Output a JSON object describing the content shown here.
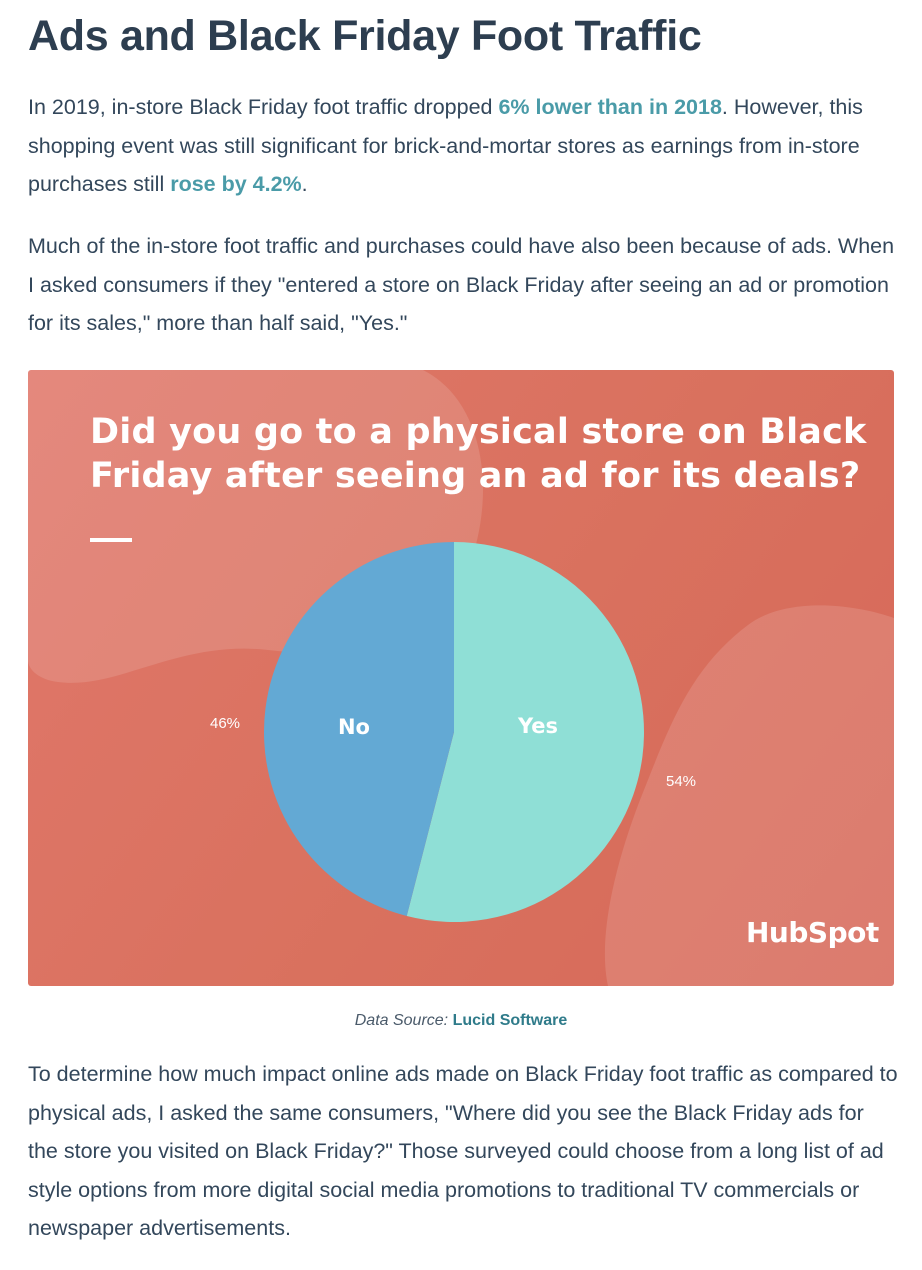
{
  "article": {
    "heading": "Ads and Black Friday Foot Traffic",
    "p1": {
      "t1": "In 2019, in-store Black Friday foot traffic dropped ",
      "link1": "6% lower than in 2018",
      "t2": ". However, this shopping event was still significant for brick-and-mortar stores as earnings from in-store purchases still ",
      "link2": "rose by 4.2%",
      "t3": "."
    },
    "p2": "Much of the in-store foot traffic and purchases could have also been because of ads. When I asked consumers if they \"entered a store on Black Friday after seeing an ad or promotion for its sales,\" more than half said, \"Yes.\"",
    "p3": "To determine how much impact online ads made on Black Friday foot traffic as compared to physical ads, I asked the same consumers, \"Where did you see the Black Friday ads for the store you visited on Black Friday?\" Those surveyed could choose from a long list of ad style options from more digital social media promotions to traditional TV commercials or newspaper advertisements."
  },
  "figure": {
    "brand": "HubSpot",
    "caption": {
      "label": "Data Source:",
      "link": "Lucid Software"
    },
    "colors": {
      "background": "#dc725f",
      "no": "#63a9d4",
      "yes": "#8fdfd6"
    }
  },
  "chart_data": {
    "type": "pie",
    "title": "Did you go to a physical store on Black Friday after seeing an ad for its deals?",
    "categories": [
      "Yes",
      "No"
    ],
    "values": [
      54,
      46
    ],
    "value_labels": [
      "54%",
      "46%"
    ]
  }
}
